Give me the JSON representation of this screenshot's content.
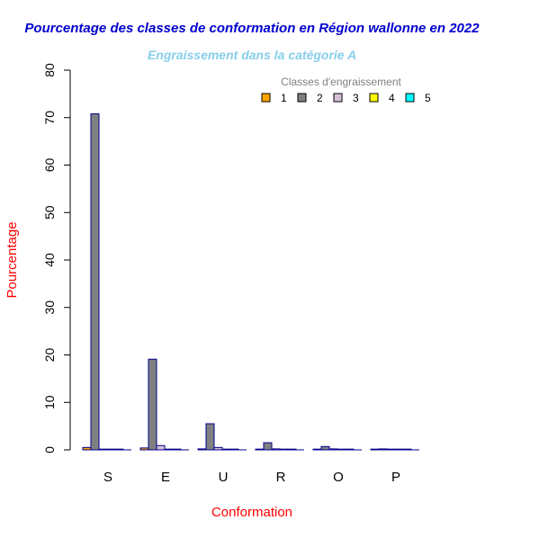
{
  "chart_data": {
    "type": "bar",
    "title": "Pourcentage des classes de conformation en Région wallonne en 2022",
    "subtitle": "Engraissement dans la catégorie A",
    "xlabel": "Conformation",
    "ylabel": "Pourcentage",
    "categories": [
      "S",
      "E",
      "U",
      "R",
      "O",
      "P"
    ],
    "ylim": [
      0,
      80
    ],
    "yticks": [
      0,
      10,
      20,
      30,
      40,
      50,
      60,
      70,
      80
    ],
    "legend": {
      "title": "Classes d'engraissement",
      "position": "top-right"
    },
    "series": [
      {
        "name": "1",
        "color": "#FFA500",
        "values": [
          0.5,
          0.4,
          0.2,
          0.1,
          0.1,
          0.1
        ]
      },
      {
        "name": "2",
        "color": "#808080",
        "values": [
          70.8,
          19.1,
          5.5,
          1.5,
          0.7,
          0.2
        ]
      },
      {
        "name": "3",
        "color": "#D8BFD8",
        "values": [
          0.1,
          0.9,
          0.5,
          0.2,
          0.2,
          0.0
        ]
      },
      {
        "name": "4",
        "color": "#FFFF00",
        "values": [
          0.0,
          0.0,
          0.0,
          0.0,
          0.0,
          0.0
        ]
      },
      {
        "name": "5",
        "color": "#00FFFF",
        "values": [
          0.0,
          0.0,
          0.0,
          0.0,
          0.0,
          0.0
        ]
      }
    ],
    "colors": {
      "title": "#0000CD",
      "subtitle": "#87CEEB",
      "axis_labels": "#FF0000",
      "bar_border": "#00008B",
      "legend_title": "#808080"
    },
    "grid": false
  }
}
